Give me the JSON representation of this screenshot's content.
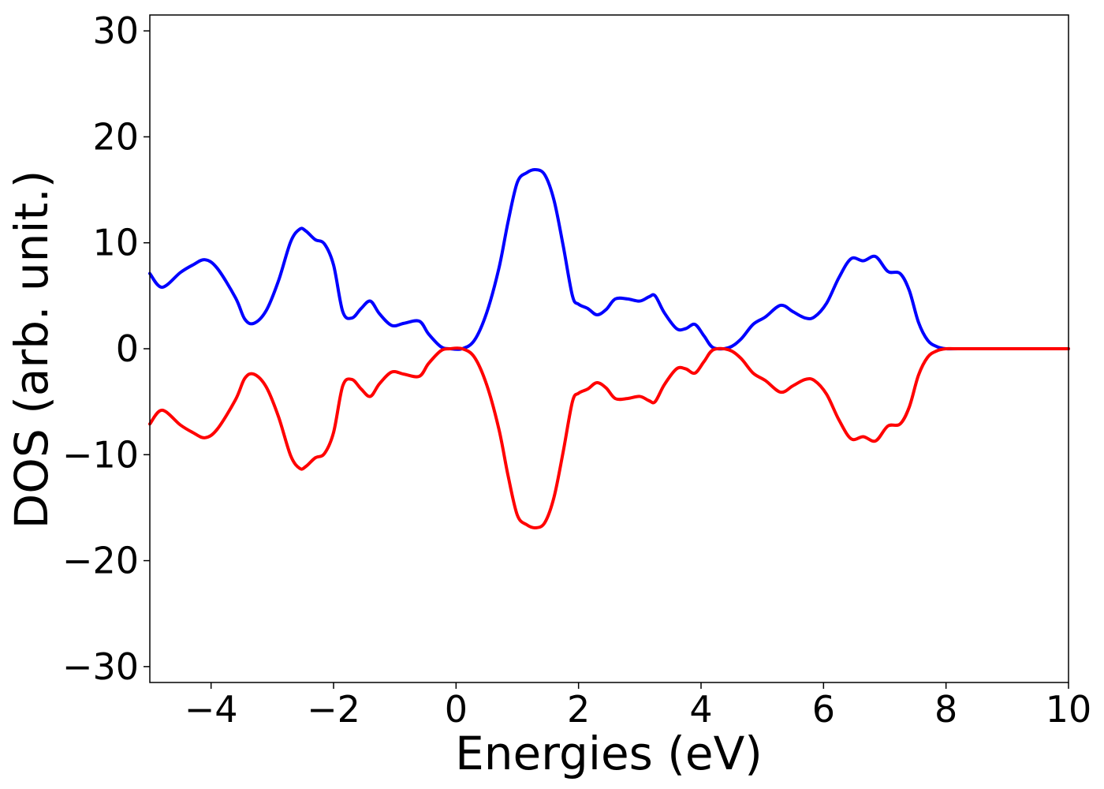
{
  "chart_data": {
    "type": "line",
    "title": "",
    "xlabel": "Energies (eV)",
    "ylabel": "DOS (arb. unit.)",
    "xlim": [
      -5,
      10
    ],
    "ylim": [
      -31.5,
      31.5
    ],
    "xticks": [
      -4,
      -2,
      0,
      2,
      4,
      6,
      8,
      10
    ],
    "xtick_labels": [
      "−4",
      "−2",
      "0",
      "2",
      "4",
      "6",
      "8",
      "10"
    ],
    "yticks": [
      -30,
      -20,
      -10,
      0,
      10,
      20,
      30
    ],
    "ytick_labels": [
      "−30",
      "−20",
      "−10",
      "0",
      "10",
      "20",
      "30"
    ],
    "grid": false,
    "legend": "none",
    "series": [
      {
        "color": "#0000ff",
        "x": [
          -5.0,
          -4.8,
          -4.5,
          -4.3,
          -4.1,
          -3.9,
          -3.6,
          -3.45,
          -3.3,
          -3.1,
          -2.9,
          -2.7,
          -2.55,
          -2.45,
          -2.3,
          -2.15,
          -2.0,
          -1.85,
          -1.7,
          -1.55,
          -1.4,
          -1.25,
          -1.05,
          -0.85,
          -0.6,
          -0.45,
          -0.25,
          -0.1,
          0.1,
          0.3,
          0.5,
          0.7,
          0.85,
          1.0,
          1.15,
          1.3,
          1.45,
          1.6,
          1.75,
          1.9,
          2.0,
          2.15,
          2.3,
          2.45,
          2.6,
          2.8,
          3.0,
          3.15,
          3.25,
          3.4,
          3.6,
          3.75,
          3.9,
          4.05,
          4.2,
          4.45,
          4.65,
          4.85,
          5.05,
          5.3,
          5.5,
          5.7,
          5.85,
          6.05,
          6.25,
          6.45,
          6.65,
          6.85,
          7.05,
          7.25,
          7.4,
          7.55,
          7.7,
          7.85,
          8.0,
          8.2,
          9.0,
          10.0
        ],
        "y": [
          7.1,
          5.8,
          7.2,
          7.9,
          8.4,
          7.6,
          4.8,
          2.8,
          2.4,
          3.6,
          6.4,
          10.1,
          11.3,
          11.1,
          10.3,
          9.9,
          7.9,
          3.5,
          2.9,
          3.8,
          4.5,
          3.3,
          2.2,
          2.4,
          2.6,
          1.4,
          0.2,
          0.0,
          0.0,
          0.8,
          3.4,
          7.6,
          12.0,
          15.7,
          16.6,
          16.9,
          16.4,
          14.0,
          9.7,
          5.0,
          4.2,
          3.8,
          3.2,
          3.7,
          4.7,
          4.7,
          4.5,
          4.9,
          5.0,
          3.4,
          1.9,
          1.9,
          2.3,
          1.2,
          0.1,
          0.1,
          0.9,
          2.3,
          3.0,
          4.1,
          3.5,
          2.9,
          3.0,
          4.3,
          6.7,
          8.5,
          8.3,
          8.7,
          7.3,
          7.1,
          5.5,
          2.5,
          0.8,
          0.2,
          0.0,
          0.0,
          0.0,
          0.0
        ]
      },
      {
        "color": "#ff0000",
        "x": [
          -5.0,
          -4.8,
          -4.5,
          -4.3,
          -4.1,
          -3.9,
          -3.6,
          -3.45,
          -3.3,
          -3.1,
          -2.9,
          -2.7,
          -2.55,
          -2.45,
          -2.3,
          -2.15,
          -2.0,
          -1.85,
          -1.7,
          -1.55,
          -1.4,
          -1.25,
          -1.05,
          -0.85,
          -0.6,
          -0.45,
          -0.25,
          -0.1,
          0.1,
          0.3,
          0.5,
          0.7,
          0.85,
          1.0,
          1.15,
          1.3,
          1.45,
          1.6,
          1.75,
          1.9,
          2.0,
          2.15,
          2.3,
          2.45,
          2.6,
          2.8,
          3.0,
          3.15,
          3.25,
          3.4,
          3.6,
          3.75,
          3.9,
          4.05,
          4.2,
          4.45,
          4.65,
          4.85,
          5.05,
          5.3,
          5.5,
          5.7,
          5.85,
          6.05,
          6.25,
          6.45,
          6.65,
          6.85,
          7.05,
          7.25,
          7.4,
          7.55,
          7.7,
          7.85,
          8.0,
          8.2,
          9.0,
          10.0
        ],
        "y": [
          -7.1,
          -5.8,
          -7.2,
          -7.9,
          -8.4,
          -7.6,
          -4.8,
          -2.8,
          -2.4,
          -3.6,
          -6.4,
          -10.1,
          -11.3,
          -11.1,
          -10.3,
          -9.9,
          -7.9,
          -3.5,
          -2.9,
          -3.8,
          -4.5,
          -3.3,
          -2.2,
          -2.4,
          -2.6,
          -1.4,
          -0.2,
          0.0,
          0.0,
          -0.8,
          -3.4,
          -7.6,
          -12.0,
          -15.7,
          -16.6,
          -16.9,
          -16.4,
          -14.0,
          -9.7,
          -5.0,
          -4.2,
          -3.8,
          -3.2,
          -3.7,
          -4.7,
          -4.7,
          -4.5,
          -4.9,
          -5.0,
          -3.4,
          -1.9,
          -1.9,
          -2.3,
          -1.2,
          -0.1,
          -0.1,
          -0.9,
          -2.3,
          -3.0,
          -4.1,
          -3.5,
          -2.9,
          -3.0,
          -4.3,
          -6.7,
          -8.5,
          -8.3,
          -8.7,
          -7.3,
          -7.1,
          -5.5,
          -2.5,
          -0.8,
          -0.2,
          0.0,
          0.0,
          0.0,
          0.0
        ]
      }
    ]
  }
}
